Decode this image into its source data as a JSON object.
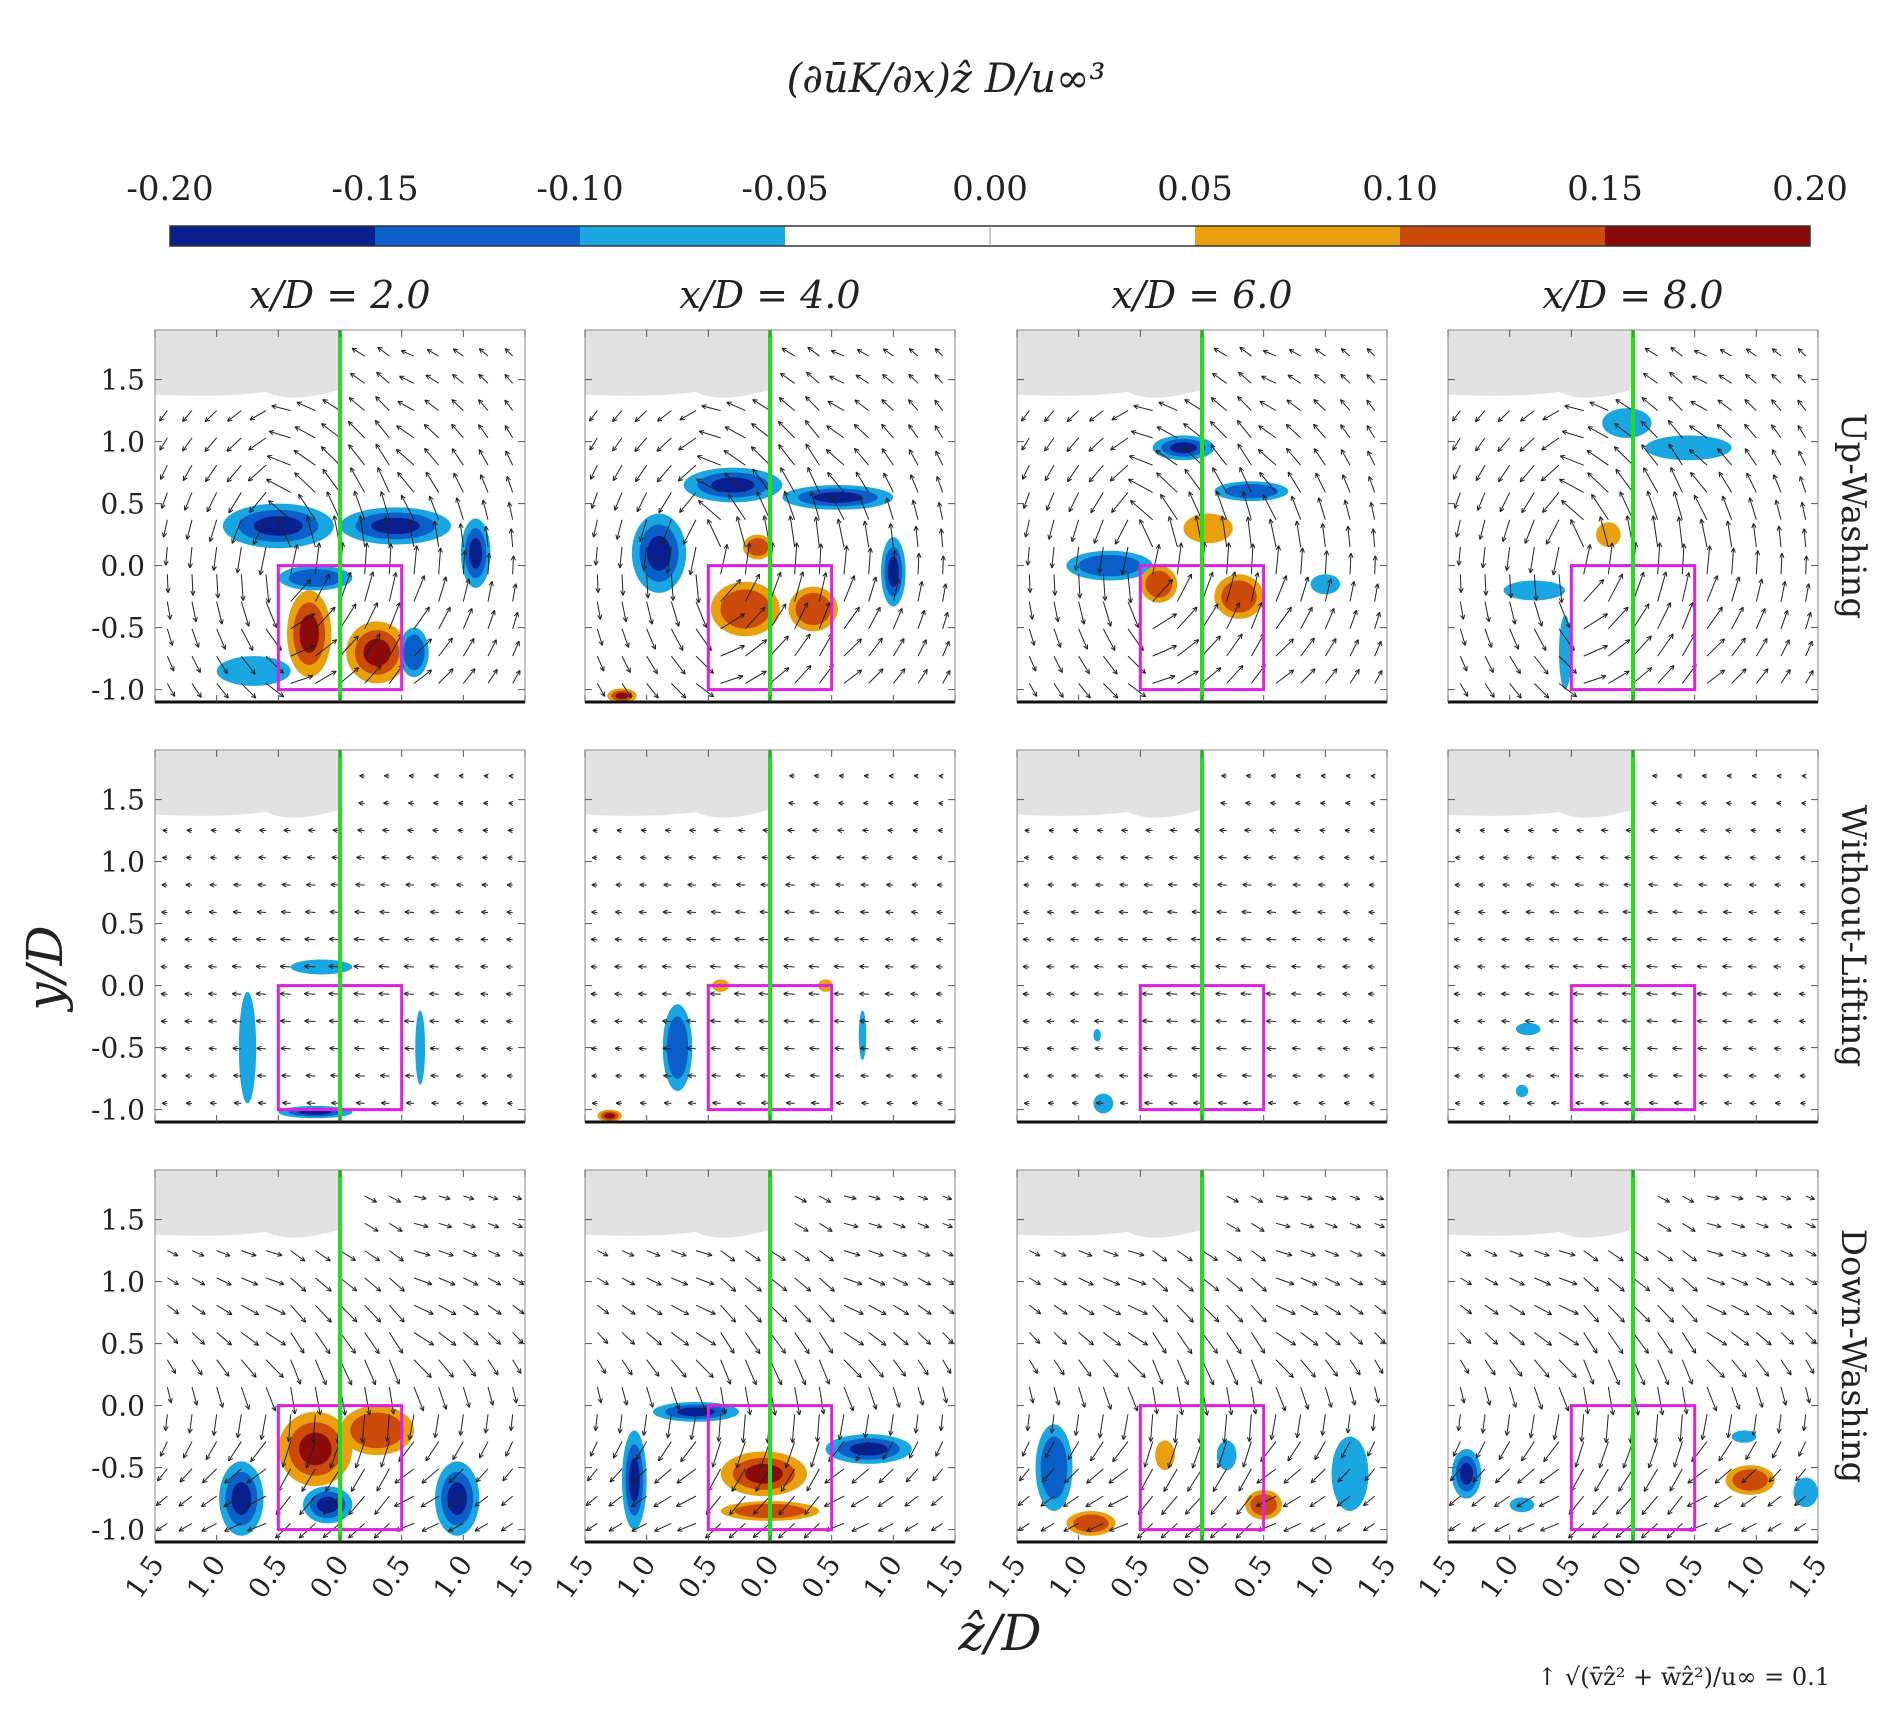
{
  "chart_data": {
    "type": "heatmap",
    "title": "(∂ūK/∂x)ẑ D/u∞³",
    "colorbar": {
      "ticks": [
        "-0.20",
        "-0.15",
        "-0.10",
        "-0.05",
        "0.00",
        "0.05",
        "0.10",
        "0.15",
        "0.20"
      ],
      "bins": [
        {
          "from": -0.2,
          "to": -0.15,
          "color": "#0a1f8f"
        },
        {
          "from": -0.15,
          "to": -0.1,
          "color": "#0a5fc8"
        },
        {
          "from": -0.1,
          "to": -0.05,
          "color": "#1aa6e0"
        },
        {
          "from": -0.05,
          "to": 0.05,
          "color": "#ffffff"
        },
        {
          "from": 0.05,
          "to": 0.1,
          "color": "#e8a00f"
        },
        {
          "from": 0.1,
          "to": 0.15,
          "color": "#cc4b0a"
        },
        {
          "from": 0.15,
          "to": 0.2,
          "color": "#8b0a0a"
        }
      ]
    },
    "column_titles": [
      "x/D = 2.0",
      "x/D = 4.0",
      "x/D = 6.0",
      "x/D = 8.0"
    ],
    "row_titles": [
      "Up-Washing",
      "Without-Lifting",
      "Down-Washing"
    ],
    "xlabel": "ẑ/D",
    "ylabel": "y/D",
    "xlim": [
      -1.5,
      1.5
    ],
    "ylim": [
      -1.1,
      1.9
    ],
    "xticks": [
      "1.5",
      "1.0",
      "0.5",
      "0.0",
      "0.5",
      "1.0",
      "1.5"
    ],
    "xtick_values": [
      -1.5,
      -1.0,
      -0.5,
      0.0,
      0.5,
      1.0,
      1.5
    ],
    "yticks": [
      "1.5",
      "1.0",
      "0.5",
      "0.0",
      "-0.5",
      "-1.0"
    ],
    "ytick_values": [
      1.5,
      1.0,
      0.5,
      0.0,
      -0.5,
      -1.0
    ],
    "reference_box": {
      "z": [
        -0.5,
        0.5
      ],
      "y": [
        -1.0,
        0.0
      ],
      "color": "#e020e0"
    },
    "centerline": {
      "z": 0.0,
      "color": "#22dd22"
    },
    "masked_region_color": "#e2e2e2",
    "vector_key": "↑  √(v̄ẑ² + w̄ẑ²)/u∞ = 0.1",
    "panels": [
      {
        "row": "Up-Washing",
        "col": "x/D = 2.0",
        "blobs": [
          {
            "z": -0.5,
            "y": 0.32,
            "rx": 0.45,
            "ry": 0.18,
            "v": -0.2
          },
          {
            "z": 0.45,
            "y": 0.32,
            "rx": 0.45,
            "ry": 0.15,
            "v": -0.2
          },
          {
            "z": 1.1,
            "y": 0.1,
            "rx": 0.12,
            "ry": 0.28,
            "v": -0.2
          },
          {
            "z": -0.25,
            "y": -0.55,
            "rx": 0.18,
            "ry": 0.35,
            "v": 0.2
          },
          {
            "z": 0.3,
            "y": -0.7,
            "rx": 0.25,
            "ry": 0.25,
            "v": 0.2
          },
          {
            "z": -0.2,
            "y": -0.1,
            "rx": 0.3,
            "ry": 0.1,
            "v": -0.12
          },
          {
            "z": -0.7,
            "y": -0.85,
            "rx": 0.3,
            "ry": 0.12,
            "v": -0.08
          },
          {
            "z": 0.6,
            "y": -0.7,
            "rx": 0.12,
            "ry": 0.2,
            "v": -0.12
          }
        ]
      },
      {
        "row": "Up-Washing",
        "col": "x/D = 4.0",
        "blobs": [
          {
            "z": -0.9,
            "y": 0.1,
            "rx": 0.22,
            "ry": 0.32,
            "v": -0.2
          },
          {
            "z": -0.3,
            "y": 0.65,
            "rx": 0.4,
            "ry": 0.14,
            "v": -0.2
          },
          {
            "z": 0.55,
            "y": 0.55,
            "rx": 0.45,
            "ry": 0.1,
            "v": -0.17
          },
          {
            "z": 1.0,
            "y": -0.05,
            "rx": 0.1,
            "ry": 0.28,
            "v": -0.17
          },
          {
            "z": -0.2,
            "y": -0.35,
            "rx": 0.28,
            "ry": 0.22,
            "v": 0.15
          },
          {
            "z": 0.35,
            "y": -0.35,
            "rx": 0.2,
            "ry": 0.18,
            "v": 0.12
          },
          {
            "z": -0.1,
            "y": 0.15,
            "rx": 0.12,
            "ry": 0.1,
            "v": 0.12
          },
          {
            "z": -1.2,
            "y": -1.05,
            "rx": 0.12,
            "ry": 0.06,
            "v": 0.2
          }
        ]
      },
      {
        "row": "Up-Washing",
        "col": "x/D = 6.0",
        "blobs": [
          {
            "z": -0.15,
            "y": 0.95,
            "rx": 0.25,
            "ry": 0.1,
            "v": -0.2
          },
          {
            "z": 0.4,
            "y": 0.6,
            "rx": 0.3,
            "ry": 0.08,
            "v": -0.15
          },
          {
            "z": -0.75,
            "y": 0.0,
            "rx": 0.35,
            "ry": 0.12,
            "v": -0.12
          },
          {
            "z": -0.35,
            "y": -0.15,
            "rx": 0.15,
            "ry": 0.15,
            "v": 0.15
          },
          {
            "z": 0.3,
            "y": -0.25,
            "rx": 0.2,
            "ry": 0.18,
            "v": 0.12
          },
          {
            "z": 0.05,
            "y": 0.3,
            "rx": 0.2,
            "ry": 0.12,
            "v": 0.08
          },
          {
            "z": 1.0,
            "y": -0.15,
            "rx": 0.12,
            "ry": 0.08,
            "v": -0.08
          }
        ]
      },
      {
        "row": "Up-Washing",
        "col": "x/D = 8.0",
        "blobs": [
          {
            "z": -0.05,
            "y": 1.15,
            "rx": 0.2,
            "ry": 0.12,
            "v": -0.1
          },
          {
            "z": 0.45,
            "y": 0.95,
            "rx": 0.35,
            "ry": 0.1,
            "v": -0.1
          },
          {
            "z": -0.2,
            "y": 0.25,
            "rx": 0.1,
            "ry": 0.1,
            "v": 0.08
          },
          {
            "z": -0.8,
            "y": -0.2,
            "rx": 0.25,
            "ry": 0.08,
            "v": -0.07
          },
          {
            "z": -0.55,
            "y": -0.7,
            "rx": 0.05,
            "ry": 0.3,
            "v": -0.07
          }
        ]
      },
      {
        "row": "Without-Lifting",
        "col": "x/D = 2.0",
        "blobs": [
          {
            "z": -0.75,
            "y": -0.5,
            "rx": 0.07,
            "ry": 0.45,
            "v": -0.1
          },
          {
            "z": -0.15,
            "y": 0.15,
            "rx": 0.25,
            "ry": 0.06,
            "v": -0.1
          },
          {
            "z": 0.65,
            "y": -0.5,
            "rx": 0.04,
            "ry": 0.3,
            "v": -0.08
          },
          {
            "z": -0.2,
            "y": -1.02,
            "rx": 0.3,
            "ry": 0.05,
            "v": -0.17
          }
        ]
      },
      {
        "row": "Without-Lifting",
        "col": "x/D = 4.0",
        "blobs": [
          {
            "z": -0.75,
            "y": -0.5,
            "rx": 0.12,
            "ry": 0.35,
            "v": -0.12
          },
          {
            "z": -0.4,
            "y": 0.0,
            "rx": 0.07,
            "ry": 0.05,
            "v": 0.08
          },
          {
            "z": 0.45,
            "y": 0.0,
            "rx": 0.06,
            "ry": 0.05,
            "v": 0.08
          },
          {
            "z": 0.75,
            "y": -0.4,
            "rx": 0.03,
            "ry": 0.2,
            "v": -0.08
          },
          {
            "z": -1.3,
            "y": -1.05,
            "rx": 0.1,
            "ry": 0.05,
            "v": 0.2
          }
        ]
      },
      {
        "row": "Without-Lifting",
        "col": "x/D = 6.0",
        "blobs": [
          {
            "z": -0.8,
            "y": -0.95,
            "rx": 0.08,
            "ry": 0.08,
            "v": -0.08
          },
          {
            "z": -0.85,
            "y": -0.4,
            "rx": 0.03,
            "ry": 0.05,
            "v": -0.08
          }
        ]
      },
      {
        "row": "Without-Lifting",
        "col": "x/D = 8.0",
        "blobs": [
          {
            "z": -0.85,
            "y": -0.35,
            "rx": 0.1,
            "ry": 0.05,
            "v": -0.08
          },
          {
            "z": -0.9,
            "y": -0.85,
            "rx": 0.05,
            "ry": 0.05,
            "v": -0.08
          }
        ]
      },
      {
        "row": "Down-Washing",
        "col": "x/D = 2.0",
        "blobs": [
          {
            "z": -0.8,
            "y": -0.75,
            "rx": 0.18,
            "ry": 0.3,
            "v": -0.2
          },
          {
            "z": 0.95,
            "y": -0.75,
            "rx": 0.18,
            "ry": 0.3,
            "v": -0.17
          },
          {
            "z": -0.2,
            "y": -0.35,
            "rx": 0.3,
            "ry": 0.3,
            "v": 0.2
          },
          {
            "z": 0.3,
            "y": -0.2,
            "rx": 0.3,
            "ry": 0.2,
            "v": 0.15
          },
          {
            "z": -0.1,
            "y": -0.8,
            "rx": 0.2,
            "ry": 0.15,
            "v": -0.17
          }
        ]
      },
      {
        "row": "Down-Washing",
        "col": "x/D = 4.0",
        "blobs": [
          {
            "z": -1.1,
            "y": -0.6,
            "rx": 0.1,
            "ry": 0.4,
            "v": -0.17
          },
          {
            "z": -0.6,
            "y": -0.05,
            "rx": 0.35,
            "ry": 0.08,
            "v": -0.17
          },
          {
            "z": 0.8,
            "y": -0.35,
            "rx": 0.35,
            "ry": 0.12,
            "v": -0.17
          },
          {
            "z": -0.05,
            "y": -0.55,
            "rx": 0.35,
            "ry": 0.18,
            "v": 0.2
          },
          {
            "z": 0.0,
            "y": -0.85,
            "rx": 0.4,
            "ry": 0.08,
            "v": 0.15
          }
        ]
      },
      {
        "row": "Down-Washing",
        "col": "x/D = 6.0",
        "blobs": [
          {
            "z": -1.2,
            "y": -0.5,
            "rx": 0.15,
            "ry": 0.35,
            "v": -0.12
          },
          {
            "z": -0.9,
            "y": -0.95,
            "rx": 0.2,
            "ry": 0.1,
            "v": 0.12
          },
          {
            "z": 1.2,
            "y": -0.55,
            "rx": 0.15,
            "ry": 0.3,
            "v": -0.1
          },
          {
            "z": 0.5,
            "y": -0.8,
            "rx": 0.15,
            "ry": 0.12,
            "v": 0.12
          },
          {
            "z": -0.3,
            "y": -0.4,
            "rx": 0.08,
            "ry": 0.12,
            "v": 0.08
          },
          {
            "z": 0.2,
            "y": -0.4,
            "rx": 0.08,
            "ry": 0.12,
            "v": -0.1
          }
        ]
      },
      {
        "row": "Down-Washing",
        "col": "x/D = 8.0",
        "blobs": [
          {
            "z": -1.35,
            "y": -0.55,
            "rx": 0.12,
            "ry": 0.2,
            "v": -0.2
          },
          {
            "z": 0.95,
            "y": -0.6,
            "rx": 0.2,
            "ry": 0.12,
            "v": 0.12
          },
          {
            "z": 0.9,
            "y": -0.25,
            "rx": 0.1,
            "ry": 0.05,
            "v": -0.1
          },
          {
            "z": 1.4,
            "y": -0.7,
            "rx": 0.1,
            "ry": 0.12,
            "v": -0.1
          },
          {
            "z": -0.9,
            "y": -0.8,
            "rx": 0.1,
            "ry": 0.06,
            "v": -0.08
          }
        ]
      }
    ]
  }
}
